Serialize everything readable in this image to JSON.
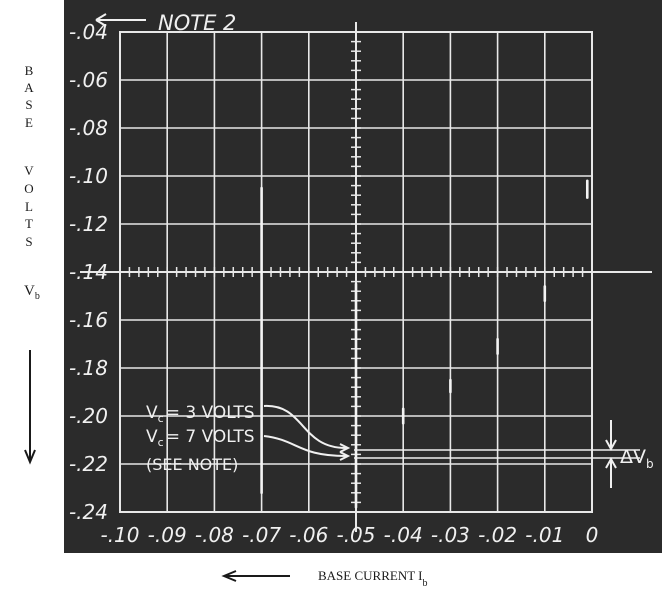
{
  "chart_data": {
    "type": "line",
    "title": "",
    "xlabel": "BASE CURRENT I",
    "xlabel_sub": "b",
    "ylabel_vertical": [
      "B",
      "A",
      "S",
      "E",
      "V",
      "O",
      "L",
      "T",
      "S"
    ],
    "ylabel_symbol": "V",
    "ylabel_symbol_sub": "b",
    "xlim": [
      -0.1,
      0
    ],
    "ylim": [
      -0.04,
      -0.24
    ],
    "x_ticks": [
      "-.10",
      "-.09",
      "-.08",
      "-.07",
      "-.06",
      "-.05",
      "-.04",
      "-.03",
      "-.02",
      "-.01",
      "0"
    ],
    "y_ticks": [
      "-.04",
      "-.06",
      "-.08",
      "-.10",
      "-.12",
      "-.14",
      "-.16",
      "-.18",
      "-.20",
      "-.22",
      "-.24"
    ],
    "x_tick_values": [
      -0.1,
      -0.09,
      -0.08,
      -0.07,
      -0.06,
      -0.05,
      -0.04,
      -0.03,
      -0.02,
      -0.01,
      0
    ],
    "y_tick_values": [
      -0.04,
      -0.06,
      -0.08,
      -0.1,
      -0.12,
      -0.14,
      -0.16,
      -0.18,
      -0.2,
      -0.22,
      -0.24
    ],
    "grid": true,
    "center_axes": {
      "x": -0.05,
      "y": -0.14
    },
    "traces": [
      {
        "x": -0.07,
        "y_top": -0.105,
        "y_bottom": -0.232
      },
      {
        "x": -0.05,
        "y_top": -0.145,
        "y_bottom": -0.238
      },
      {
        "x": -0.04,
        "y_top": -0.197,
        "y_bottom": -0.203
      },
      {
        "x": -0.03,
        "y_top": -0.185,
        "y_bottom": -0.19
      },
      {
        "x": -0.02,
        "y_top": -0.168,
        "y_bottom": -0.174
      },
      {
        "x": -0.01,
        "y_top": -0.146,
        "y_bottom": -0.152
      },
      {
        "x": -0.001,
        "y_top": -0.102,
        "y_bottom": -0.109
      }
    ],
    "curve_labels": [
      {
        "main": "V",
        "sub": "c",
        "rest": "= 3 VOLTS"
      },
      {
        "main": "V",
        "sub": "c",
        "rest": "= 7 VOLTS"
      }
    ],
    "see_note": "(SEE NOTE)",
    "note": "NOTE 2",
    "delta_label": "ΔV",
    "delta_sub": "b",
    "colors": {
      "screen": "#2b2b2b",
      "grid": "#e8e8e8",
      "trace": "#f4f4f4"
    }
  }
}
